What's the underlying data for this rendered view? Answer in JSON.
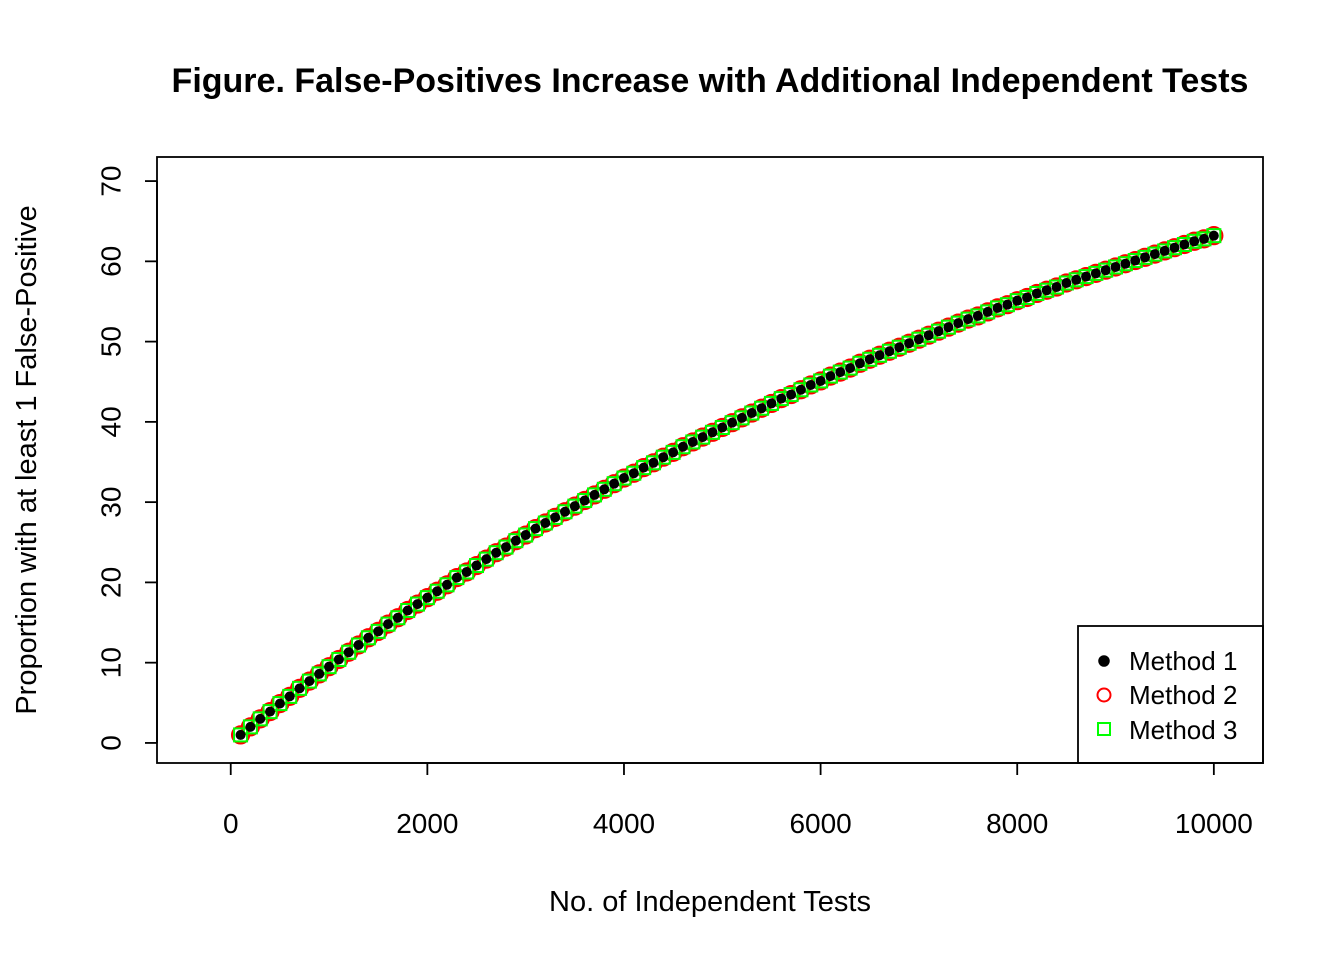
{
  "chart_data": {
    "type": "scatter",
    "title": "Figure. False-Positives Increase with Additional Independent Tests",
    "xlabel": "No. of Independent Tests",
    "ylabel": "Proportion with at least 1 False-Positive",
    "xlim": [
      -750,
      10500
    ],
    "ylim": [
      -2.5,
      73
    ],
    "xticks": [
      0,
      2000,
      4000,
      6000,
      8000,
      10000
    ],
    "yticks": [
      0,
      10,
      20,
      30,
      40,
      50,
      60,
      70
    ],
    "grid": false,
    "legend": {
      "position": "bottom-right"
    },
    "x": [
      100,
      200,
      300,
      400,
      500,
      600,
      700,
      800,
      900,
      1000,
      1100,
      1200,
      1300,
      1400,
      1500,
      1600,
      1700,
      1800,
      1900,
      2000,
      2100,
      2200,
      2300,
      2400,
      2500,
      2600,
      2700,
      2800,
      2900,
      3000,
      3100,
      3200,
      3300,
      3400,
      3500,
      3600,
      3700,
      3800,
      3900,
      4000,
      4100,
      4200,
      4300,
      4400,
      4500,
      4600,
      4700,
      4800,
      4900,
      5000,
      5100,
      5200,
      5300,
      5400,
      5500,
      5600,
      5700,
      5800,
      5900,
      6000,
      6100,
      6200,
      6300,
      6400,
      6500,
      6600,
      6700,
      6800,
      6900,
      7000,
      7100,
      7200,
      7300,
      7400,
      7500,
      7600,
      7700,
      7800,
      7900,
      8000,
      8100,
      8200,
      8300,
      8400,
      8500,
      8600,
      8700,
      8800,
      8900,
      9000,
      9100,
      9200,
      9300,
      9400,
      9500,
      9600,
      9700,
      9800,
      9900,
      10000
    ],
    "series": [
      {
        "name": "Method 1",
        "marker": "filled-circle",
        "color": "#000000",
        "values": [
          1.0,
          2.0,
          3.0,
          3.9,
          4.9,
          5.8,
          6.8,
          7.7,
          8.6,
          9.5,
          10.4,
          11.3,
          12.2,
          13.1,
          13.9,
          14.8,
          15.6,
          16.5,
          17.3,
          18.1,
          18.9,
          19.7,
          20.6,
          21.3,
          22.1,
          22.9,
          23.7,
          24.4,
          25.2,
          25.9,
          26.7,
          27.4,
          28.1,
          28.8,
          29.5,
          30.2,
          30.9,
          31.6,
          32.3,
          33.0,
          33.6,
          34.3,
          34.9,
          35.6,
          36.2,
          36.9,
          37.5,
          38.1,
          38.7,
          39.3,
          39.9,
          40.5,
          41.1,
          41.7,
          42.3,
          42.9,
          43.4,
          44.0,
          44.6,
          45.1,
          45.7,
          46.2,
          46.7,
          47.3,
          47.8,
          48.3,
          48.8,
          49.3,
          49.8,
          50.3,
          50.8,
          51.3,
          51.8,
          52.3,
          52.8,
          53.2,
          53.7,
          54.2,
          54.6,
          55.1,
          55.5,
          56.0,
          56.4,
          56.8,
          57.3,
          57.7,
          58.1,
          58.5,
          58.9,
          59.3,
          59.7,
          60.1,
          60.5,
          60.9,
          61.3,
          61.7,
          62.1,
          62.5,
          62.8,
          63.2
        ]
      },
      {
        "name": "Method 2",
        "marker": "open-circle",
        "color": "#ff0000",
        "values": [
          1.0,
          2.0,
          3.0,
          3.9,
          4.9,
          5.8,
          6.8,
          7.7,
          8.6,
          9.5,
          10.4,
          11.3,
          12.2,
          13.1,
          13.9,
          14.8,
          15.6,
          16.5,
          17.3,
          18.1,
          18.9,
          19.7,
          20.6,
          21.3,
          22.1,
          22.9,
          23.7,
          24.4,
          25.2,
          25.9,
          26.7,
          27.4,
          28.1,
          28.8,
          29.5,
          30.2,
          30.9,
          31.6,
          32.3,
          33.0,
          33.6,
          34.3,
          34.9,
          35.6,
          36.2,
          36.9,
          37.5,
          38.1,
          38.7,
          39.3,
          39.9,
          40.5,
          41.1,
          41.7,
          42.3,
          42.9,
          43.4,
          44.0,
          44.6,
          45.1,
          45.7,
          46.2,
          46.7,
          47.3,
          47.8,
          48.3,
          48.8,
          49.3,
          49.8,
          50.3,
          50.8,
          51.3,
          51.8,
          52.3,
          52.8,
          53.2,
          53.7,
          54.2,
          54.6,
          55.1,
          55.5,
          56.0,
          56.4,
          56.8,
          57.3,
          57.7,
          58.1,
          58.5,
          58.9,
          59.3,
          59.7,
          60.1,
          60.5,
          60.9,
          61.3,
          61.7,
          62.1,
          62.5,
          62.8,
          63.2
        ]
      },
      {
        "name": "Method 3",
        "marker": "open-square",
        "color": "#00ff00",
        "values": [
          1.0,
          2.0,
          3.0,
          3.9,
          4.9,
          5.8,
          6.8,
          7.7,
          8.6,
          9.5,
          10.4,
          11.3,
          12.2,
          13.1,
          13.9,
          14.8,
          15.6,
          16.5,
          17.3,
          18.1,
          18.9,
          19.7,
          20.6,
          21.3,
          22.1,
          22.9,
          23.7,
          24.4,
          25.2,
          25.9,
          26.7,
          27.4,
          28.1,
          28.8,
          29.5,
          30.2,
          30.9,
          31.6,
          32.3,
          33.0,
          33.6,
          34.3,
          34.9,
          35.6,
          36.2,
          36.9,
          37.5,
          38.1,
          38.7,
          39.3,
          39.9,
          40.5,
          41.1,
          41.7,
          42.3,
          42.9,
          43.4,
          44.0,
          44.6,
          45.1,
          45.7,
          46.2,
          46.7,
          47.3,
          47.8,
          48.3,
          48.8,
          49.3,
          49.8,
          50.3,
          50.8,
          51.3,
          51.8,
          52.3,
          52.8,
          53.2,
          53.7,
          54.2,
          54.6,
          55.1,
          55.5,
          56.0,
          56.4,
          56.8,
          57.3,
          57.7,
          58.1,
          58.5,
          58.9,
          59.3,
          59.7,
          60.1,
          60.5,
          60.9,
          61.3,
          61.7,
          62.1,
          62.5,
          62.8,
          63.2
        ]
      }
    ]
  }
}
